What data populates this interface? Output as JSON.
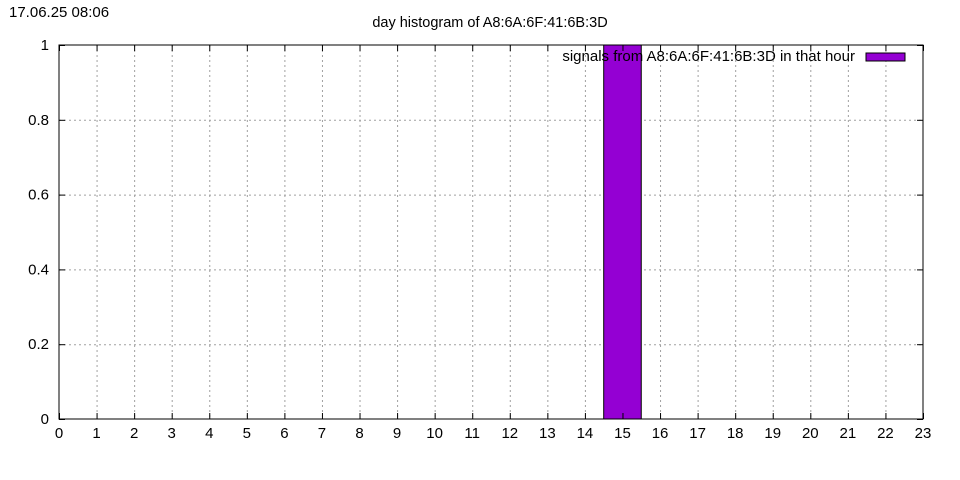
{
  "timestamp": "17.06.25 08:06",
  "chart_data": {
    "type": "bar",
    "title": "day histogram of A8:6A:6F:41:6B:3D",
    "xlabel": "",
    "ylabel": "",
    "xlim": [
      0,
      23
    ],
    "ylim": [
      0,
      1
    ],
    "x_ticks": [
      0,
      1,
      2,
      3,
      4,
      5,
      6,
      7,
      8,
      9,
      10,
      11,
      12,
      13,
      14,
      15,
      16,
      17,
      18,
      19,
      20,
      21,
      22,
      23
    ],
    "y_ticks": [
      0,
      0.2,
      0.4,
      0.6,
      0.8,
      1
    ],
    "y_tick_labels": [
      "0",
      "0.2",
      "0.4",
      "0.6",
      "0.8",
      "1"
    ],
    "grid": true,
    "legend_position": "top-right",
    "series": [
      {
        "name": "signals from A8:6A:6F:41:6B:3D in that hour",
        "color": "#9400d3",
        "x": [
          15
        ],
        "values": [
          1
        ]
      }
    ]
  }
}
